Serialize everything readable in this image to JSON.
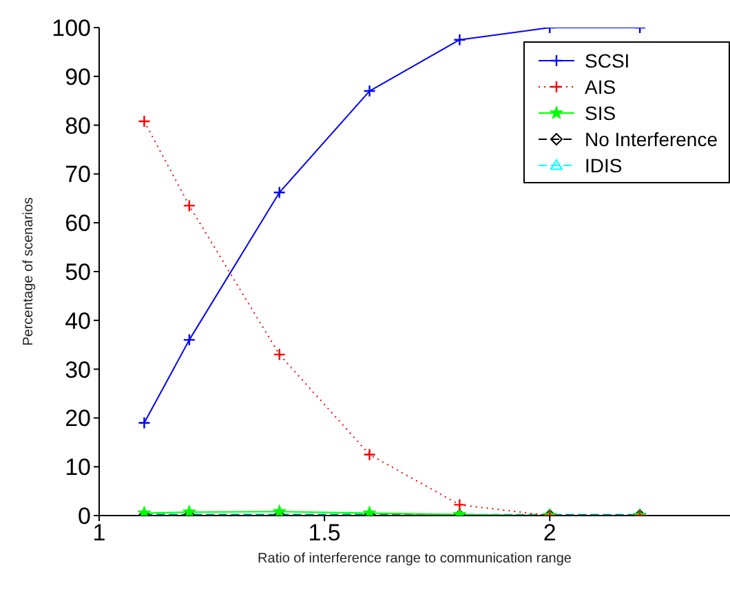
{
  "chart_data": {
    "type": "line",
    "xlabel": "Ratio of interference range to communication range",
    "ylabel": "Percentage of scenarios",
    "x": [
      1.1,
      1.2,
      1.4,
      1.6,
      1.8,
      2.0,
      2.2
    ],
    "xlim": [
      1,
      2.4
    ],
    "xticks": [
      1,
      1.5,
      2
    ],
    "ylim": [
      0,
      100
    ],
    "yticks": [
      0,
      10,
      20,
      30,
      40,
      50,
      60,
      70,
      80,
      90,
      100
    ],
    "grid": false,
    "legend": "top right",
    "series": [
      {
        "name": "SCSI",
        "color": "#0000ff",
        "marker": "cross",
        "line_style": "solid",
        "values": [
          19,
          36,
          66.2,
          87,
          97.5,
          100,
          100
        ]
      },
      {
        "name": "AIS",
        "color": "#ff0000",
        "marker": "cross",
        "line_style": "dotted",
        "values": [
          80.8,
          63.5,
          33,
          12.5,
          2.2,
          0,
          0
        ]
      },
      {
        "name": "SIS",
        "color": "#00ff00",
        "marker": "star",
        "line_style": "solid",
        "values": [
          0.5,
          0.7,
          0.8,
          0.5,
          0.2,
          0,
          0
        ]
      },
      {
        "name": "No Interference",
        "color": "#000000",
        "marker": "diamond",
        "line_style": "dashed",
        "values": [
          0,
          0,
          0,
          0,
          0,
          0,
          0
        ]
      },
      {
        "name": "IDIS",
        "color": "#00ffff",
        "marker": "triangle",
        "line_style": "dashed",
        "values": [
          0.3,
          0.3,
          0.3,
          0.3,
          0.2,
          0.2,
          0.2
        ]
      }
    ]
  }
}
